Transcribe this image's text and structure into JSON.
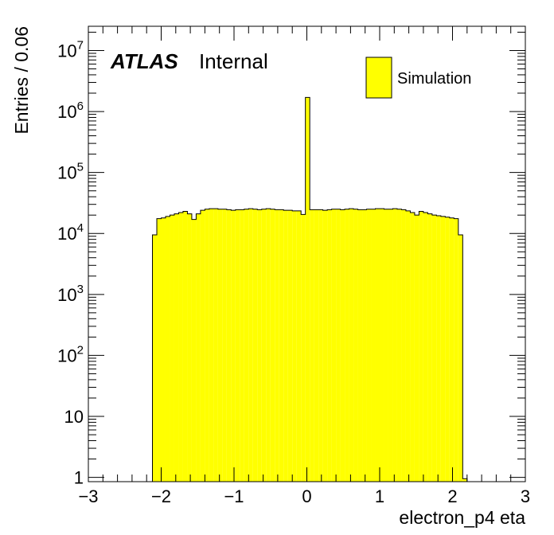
{
  "chart_data": {
    "type": "histogram",
    "title": "",
    "xlabel": "electron_p4 eta",
    "ylabel": "Entries / 0.06",
    "xlim": [
      -3,
      3
    ],
    "ylim": [
      0.85,
      25000000
    ],
    "log_y": true,
    "bin_width": 0.06,
    "x_ticks": [
      {
        "value": -3,
        "label": "−3"
      },
      {
        "value": -2,
        "label": "−2"
      },
      {
        "value": -1,
        "label": "−1"
      },
      {
        "value": 0,
        "label": "0"
      },
      {
        "value": 1,
        "label": "1"
      },
      {
        "value": 2,
        "label": "2"
      },
      {
        "value": 3,
        "label": "3"
      }
    ],
    "y_ticks": [
      {
        "value": 1,
        "base": "1",
        "exp": ""
      },
      {
        "value": 10,
        "base": "10",
        "exp": ""
      },
      {
        "value": 100,
        "base": "10",
        "exp": "2"
      },
      {
        "value": 1000,
        "base": "10",
        "exp": "3"
      },
      {
        "value": 10000,
        "base": "10",
        "exp": "4"
      },
      {
        "value": 100000,
        "base": "10",
        "exp": "5"
      },
      {
        "value": 1000000,
        "base": "10",
        "exp": "6"
      },
      {
        "value": 10000000,
        "base": "10",
        "exp": "7"
      }
    ],
    "annotation": {
      "atlas": "ATLAS",
      "label": "Internal"
    },
    "legend": {
      "position": "top-right",
      "entries": [
        {
          "name": "Simulation",
          "color": "#ffff00"
        }
      ]
    },
    "series": [
      {
        "name": "Simulation",
        "color": "#ffff00",
        "edge_color": "#000000",
        "bins": [
          {
            "x0": -2.12,
            "x1": -2.06,
            "y": 9500
          },
          {
            "x0": -2.06,
            "x1": -2.0,
            "y": 17500
          },
          {
            "x0": -2.0,
            "x1": -1.94,
            "y": 18000
          },
          {
            "x0": -1.94,
            "x1": -1.88,
            "y": 19000
          },
          {
            "x0": -1.88,
            "x1": -1.82,
            "y": 20000
          },
          {
            "x0": -1.82,
            "x1": -1.76,
            "y": 21000
          },
          {
            "x0": -1.76,
            "x1": -1.7,
            "y": 22000
          },
          {
            "x0": -1.7,
            "x1": -1.64,
            "y": 23000
          },
          {
            "x0": -1.64,
            "x1": -1.58,
            "y": 21000
          },
          {
            "x0": -1.58,
            "x1": -1.52,
            "y": 17000
          },
          {
            "x0": -1.52,
            "x1": -1.46,
            "y": 21000
          },
          {
            "x0": -1.46,
            "x1": -1.4,
            "y": 24000
          },
          {
            "x0": -1.4,
            "x1": -1.34,
            "y": 25000
          },
          {
            "x0": -1.34,
            "x1": -1.28,
            "y": 25500
          },
          {
            "x0": -1.28,
            "x1": -1.22,
            "y": 25500
          },
          {
            "x0": -1.22,
            "x1": -1.16,
            "y": 25000
          },
          {
            "x0": -1.16,
            "x1": -1.1,
            "y": 25000
          },
          {
            "x0": -1.1,
            "x1": -1.04,
            "y": 24500
          },
          {
            "x0": -1.04,
            "x1": -0.98,
            "y": 24000
          },
          {
            "x0": -0.98,
            "x1": -0.92,
            "y": 24500
          },
          {
            "x0": -0.92,
            "x1": -0.86,
            "y": 24500
          },
          {
            "x0": -0.86,
            "x1": -0.8,
            "y": 25000
          },
          {
            "x0": -0.8,
            "x1": -0.74,
            "y": 25500
          },
          {
            "x0": -0.74,
            "x1": -0.68,
            "y": 25000
          },
          {
            "x0": -0.68,
            "x1": -0.62,
            "y": 24500
          },
          {
            "x0": -0.62,
            "x1": -0.56,
            "y": 25000
          },
          {
            "x0": -0.56,
            "x1": -0.5,
            "y": 25500
          },
          {
            "x0": -0.5,
            "x1": -0.44,
            "y": 25000
          },
          {
            "x0": -0.44,
            "x1": -0.38,
            "y": 24500
          },
          {
            "x0": -0.38,
            "x1": -0.32,
            "y": 24500
          },
          {
            "x0": -0.32,
            "x1": -0.26,
            "y": 24000
          },
          {
            "x0": -0.26,
            "x1": -0.2,
            "y": 24000
          },
          {
            "x0": -0.2,
            "x1": -0.14,
            "y": 23500
          },
          {
            "x0": -0.14,
            "x1": -0.08,
            "y": 23500
          },
          {
            "x0": -0.08,
            "x1": -0.02,
            "y": 20500
          },
          {
            "x0": -0.02,
            "x1": 0.04,
            "y": 1700000
          },
          {
            "x0": 0.04,
            "x1": 0.1,
            "y": 24500
          },
          {
            "x0": 0.1,
            "x1": 0.16,
            "y": 24500
          },
          {
            "x0": 0.16,
            "x1": 0.22,
            "y": 24500
          },
          {
            "x0": 0.22,
            "x1": 0.28,
            "y": 24000
          },
          {
            "x0": 0.28,
            "x1": 0.34,
            "y": 24500
          },
          {
            "x0": 0.34,
            "x1": 0.4,
            "y": 25000
          },
          {
            "x0": 0.4,
            "x1": 0.46,
            "y": 25000
          },
          {
            "x0": 0.46,
            "x1": 0.52,
            "y": 24500
          },
          {
            "x0": 0.52,
            "x1": 0.58,
            "y": 25000
          },
          {
            "x0": 0.58,
            "x1": 0.64,
            "y": 25500
          },
          {
            "x0": 0.64,
            "x1": 0.7,
            "y": 25000
          },
          {
            "x0": 0.7,
            "x1": 0.76,
            "y": 24500
          },
          {
            "x0": 0.76,
            "x1": 0.82,
            "y": 24500
          },
          {
            "x0": 0.82,
            "x1": 0.88,
            "y": 25000
          },
          {
            "x0": 0.88,
            "x1": 0.94,
            "y": 25000
          },
          {
            "x0": 0.94,
            "x1": 1.0,
            "y": 25500
          },
          {
            "x0": 1.0,
            "x1": 1.06,
            "y": 25500
          },
          {
            "x0": 1.06,
            "x1": 1.12,
            "y": 25000
          },
          {
            "x0": 1.12,
            "x1": 1.18,
            "y": 25000
          },
          {
            "x0": 1.18,
            "x1": 1.24,
            "y": 25500
          },
          {
            "x0": 1.24,
            "x1": 1.3,
            "y": 25000
          },
          {
            "x0": 1.3,
            "x1": 1.36,
            "y": 24500
          },
          {
            "x0": 1.36,
            "x1": 1.42,
            "y": 23500
          },
          {
            "x0": 1.42,
            "x1": 1.48,
            "y": 22000
          },
          {
            "x0": 1.48,
            "x1": 1.54,
            "y": 20000
          },
          {
            "x0": 1.54,
            "x1": 1.6,
            "y": 23000
          },
          {
            "x0": 1.6,
            "x1": 1.66,
            "y": 22000
          },
          {
            "x0": 1.66,
            "x1": 1.72,
            "y": 21000
          },
          {
            "x0": 1.72,
            "x1": 1.78,
            "y": 20000
          },
          {
            "x0": 1.78,
            "x1": 1.84,
            "y": 19500
          },
          {
            "x0": 1.84,
            "x1": 1.9,
            "y": 19000
          },
          {
            "x0": 1.9,
            "x1": 1.96,
            "y": 18500
          },
          {
            "x0": 1.96,
            "x1": 2.02,
            "y": 18000
          },
          {
            "x0": 2.02,
            "x1": 2.08,
            "y": 17500
          },
          {
            "x0": 2.08,
            "x1": 2.14,
            "y": 9500
          },
          {
            "x0": 2.14,
            "x1": 2.2,
            "y": 0.95
          }
        ]
      }
    ]
  }
}
